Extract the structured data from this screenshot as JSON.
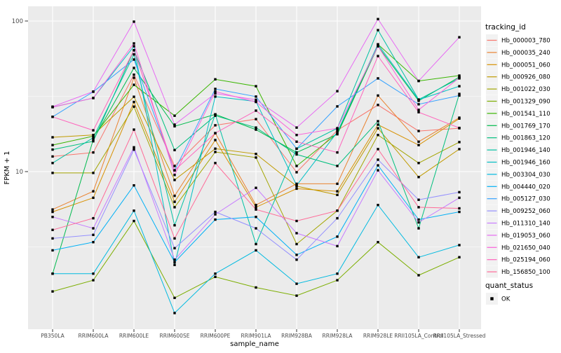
{
  "chart_data": {
    "type": "line",
    "title": "",
    "xlabel": "sample_name",
    "ylabel": "FPKM + 1",
    "y_scale": "log10",
    "y_major_ticks": [
      10,
      100
    ],
    "y_minor_ticks": [
      3.162,
      31.62
    ],
    "ylim": [
      0.9,
      125
    ],
    "grid": "on",
    "panel_bg_color": "#EBEBEB",
    "grid_color": "#FFFFFF",
    "tick_label_color": "#4D4D4D",
    "axis_title_color": "#000000",
    "point_color": "#000000",
    "point_shape": "square",
    "categories": [
      "PB350LA",
      "RRIM600LA",
      "RRIM600LE",
      "RRIM600SE",
      "RRIM600PE",
      "RRIM901LA",
      "RRIM928BA",
      "RRIM928LA",
      "RRIM928LE",
      "RRII105LA_Control",
      "RRII105LA_Stressed"
    ],
    "legend": {
      "position": "right",
      "color_legend_title": "tracking_id",
      "shape_legend_title": "quant_status",
      "shape_legend_items": [
        {
          "label": "OK",
          "marker": "black-square"
        }
      ],
      "key_bg_color": "#F2F2F2"
    },
    "series": [
      {
        "name": "Hb_000003_780",
        "color": "#F8766D",
        "values": [
          12.6,
          13.4,
          44,
          10.9,
          20.3,
          22.3,
          9.9,
          18.8,
          27.7,
          18.6,
          19.4
        ]
      },
      {
        "name": "Hb_000035_240",
        "color": "#EA8331",
        "values": [
          5.6,
          7.4,
          42,
          6.9,
          18,
          6.0,
          8.3,
          8.3,
          32,
          15.8,
          22.8
        ]
      },
      {
        "name": "Hb_000051_060",
        "color": "#D89000",
        "values": [
          5.4,
          6.7,
          29,
          6.3,
          16.2,
          5.8,
          7.7,
          7.4,
          20.5,
          15.0,
          22.5
        ]
      },
      {
        "name": "Hb_000926_080",
        "color": "#C09B00",
        "values": [
          16.9,
          17.5,
          31.4,
          8.8,
          14.2,
          13.1,
          8.0,
          7.0,
          19.4,
          9.2,
          14.1
        ]
      },
      {
        "name": "Hb_001022_030",
        "color": "#A3A500",
        "values": [
          9.8,
          9.8,
          27,
          5.8,
          13.5,
          12.4,
          3.3,
          5.5,
          17.5,
          11.4,
          15.7
        ]
      },
      {
        "name": "Hb_001329_090",
        "color": "#7CAE00",
        "values": [
          1.6,
          1.9,
          4.7,
          1.45,
          2.0,
          1.7,
          1.5,
          1.9,
          3.4,
          2.05,
          2.7
        ]
      },
      {
        "name": "Hb_001541_110",
        "color": "#39B600",
        "values": [
          15.0,
          17.2,
          37.7,
          23.5,
          41,
          36.9,
          10.9,
          17.9,
          70,
          40,
          43.4
        ]
      },
      {
        "name": "Hb_001769_170",
        "color": "#00BB4E",
        "values": [
          2.1,
          16.3,
          48.8,
          20,
          24,
          19.0,
          13.4,
          17.7,
          68,
          29.5,
          42.5
        ]
      },
      {
        "name": "Hb_001863_120",
        "color": "#00BF7D",
        "values": [
          14.0,
          15.9,
          64,
          13.9,
          23.5,
          19.6,
          13.0,
          10.9,
          21.6,
          4.2,
          32.8
        ]
      },
      {
        "name": "Hb_001946_140",
        "color": "#00C1A3",
        "values": [
          11.4,
          16.8,
          60,
          4.4,
          24,
          3.3,
          14.2,
          19.4,
          87,
          30.1,
          41.6
        ]
      },
      {
        "name": "Hb_001946_160",
        "color": "#00BFC4",
        "values": [
          26.8,
          30.8,
          68,
          2.4,
          31.5,
          29.2,
          8.1,
          18.3,
          70,
          30,
          36.9
        ]
      },
      {
        "name": "Hb_003304_030",
        "color": "#00BAE0",
        "values": [
          2.1,
          2.1,
          5.5,
          1.15,
          2.1,
          3.0,
          1.8,
          2.1,
          6.0,
          2.7,
          3.25
        ]
      },
      {
        "name": "Hb_004440_020",
        "color": "#00B0F6",
        "values": [
          3.0,
          3.4,
          8.1,
          2.5,
          4.8,
          5.0,
          2.8,
          3.7,
          11.0,
          4.8,
          5.4
        ]
      },
      {
        "name": "Hb_005127_030",
        "color": "#35A2FF",
        "values": [
          23.1,
          33.9,
          55.5,
          10.2,
          35.4,
          31.5,
          14.2,
          27.1,
          41.6,
          28,
          32
        ]
      },
      {
        "name": "Hb_009252_060",
        "color": "#9590FF",
        "values": [
          3.6,
          3.8,
          14.0,
          3.1,
          5.4,
          4.2,
          2.6,
          4.9,
          12.0,
          6.5,
          7.3
        ]
      },
      {
        "name": "Hb_011310_140",
        "color": "#C77CFF",
        "values": [
          5.0,
          4.2,
          14.5,
          2.6,
          5.2,
          7.8,
          3.9,
          3.2,
          10.2,
          4.6,
          6.7
        ]
      },
      {
        "name": "Hb_019053_060",
        "color": "#E76BF3",
        "values": [
          27,
          34,
          99,
          20.5,
          33,
          30,
          19.6,
          34.2,
          103,
          40,
          78
        ]
      },
      {
        "name": "Hb_021650_040",
        "color": "#FA62DB",
        "values": [
          26.8,
          30.8,
          71,
          9.5,
          34,
          29,
          17.5,
          19.4,
          68,
          25.7,
          42
        ]
      },
      {
        "name": "Hb_025194_060",
        "color": "#FF62BC",
        "values": [
          23.1,
          18.8,
          64,
          10.2,
          18,
          25.4,
          15.8,
          13.4,
          58.5,
          24.8,
          19.5
        ]
      },
      {
        "name": "Hb_156850_100",
        "color": "#FF6A98",
        "values": [
          4.1,
          4.9,
          19,
          3.6,
          11.4,
          5.6,
          4.7,
          5.5,
          14.1,
          5.8,
          5.7
        ]
      }
    ]
  }
}
